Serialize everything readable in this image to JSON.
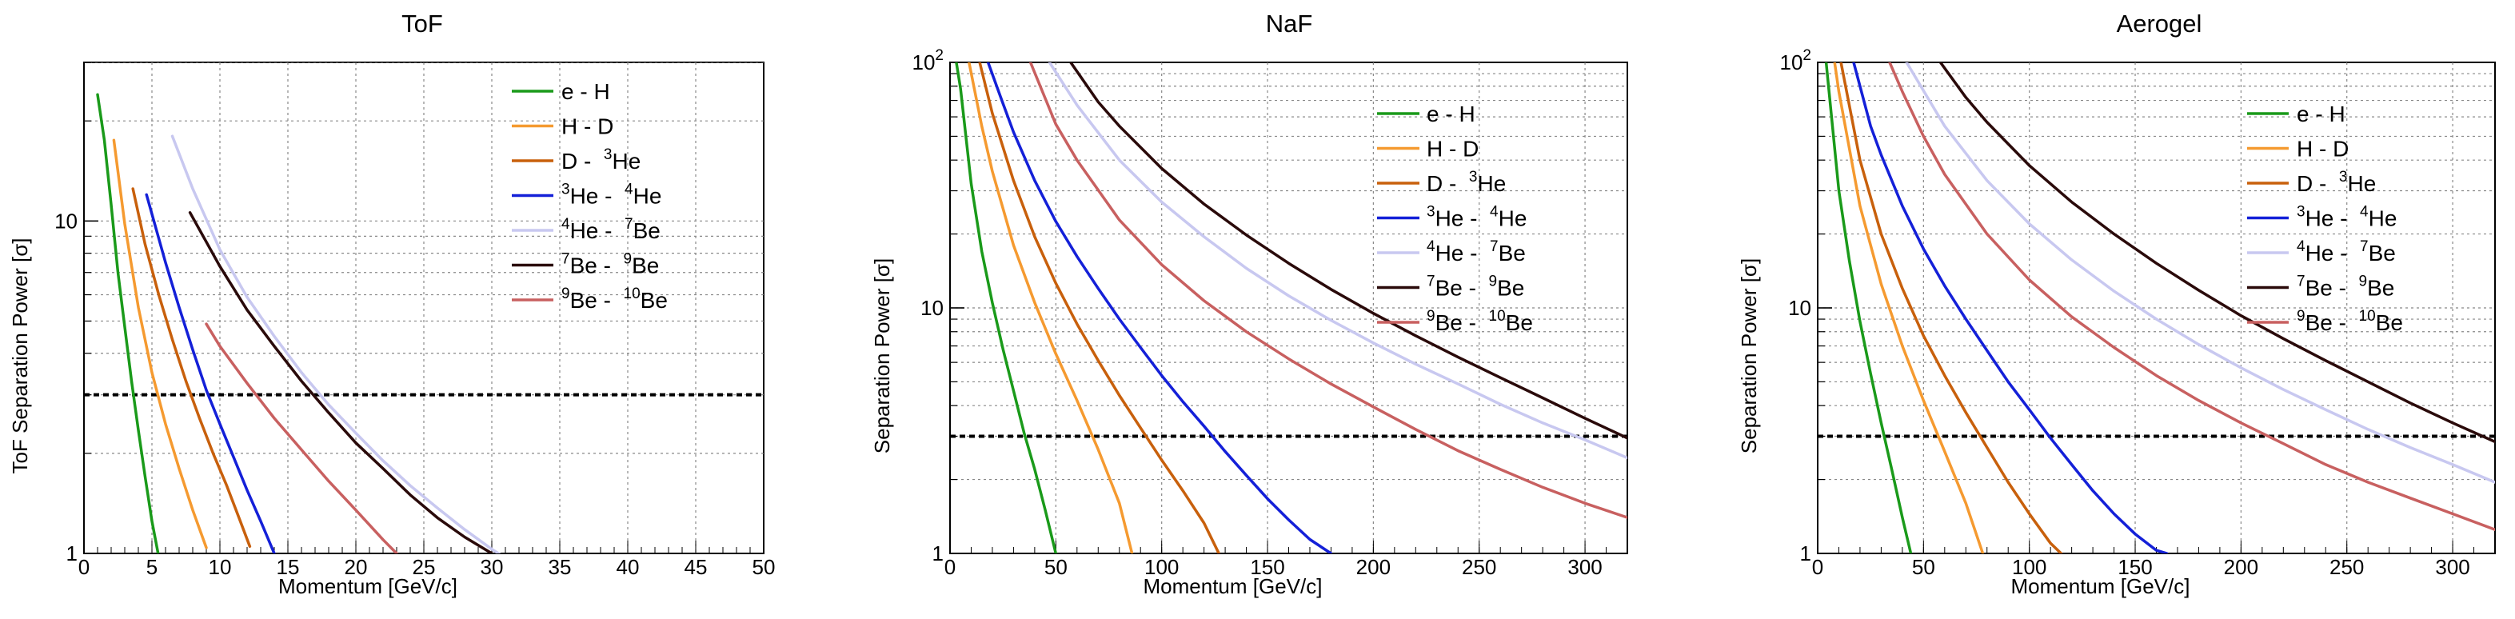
{
  "chart_data": [
    {
      "type": "line",
      "title": "ToF",
      "xlabel": "Momentum [GeV/c]",
      "ylabel": "ToF Separation Power [σ]",
      "xlim": [
        0,
        50
      ],
      "ylim": [
        1,
        30
      ],
      "ylog": true,
      "xticks": [
        0,
        5,
        10,
        15,
        20,
        25,
        30,
        35,
        40,
        45,
        50
      ],
      "yticks": [
        1,
        10
      ],
      "threshold": 3,
      "grid": true,
      "legend_position": "top-right",
      "series": [
        {
          "name": "e - H",
          "color": "#1a9a1a",
          "x": [
            1.0,
            1.5,
            2,
            2.5,
            3,
            3.5,
            4,
            4.5,
            5,
            5.45
          ],
          "y": [
            24,
            17.5,
            11.2,
            7.0,
            4.8,
            3.3,
            2.35,
            1.7,
            1.25,
            1.0
          ]
        },
        {
          "name": "H - D",
          "color": "#f59a30",
          "x": [
            2.2,
            3,
            4,
            5,
            6,
            7,
            8,
            9
          ],
          "y": [
            17.5,
            9.8,
            5.5,
            3.5,
            2.45,
            1.8,
            1.35,
            1.04
          ]
        },
        {
          "name": "D - 3He",
          "color": "#c8600c",
          "x": [
            3.6,
            4.5,
            5.5,
            6.5,
            7.5,
            8.5,
            9.5,
            10.5,
            11.5,
            12.2
          ],
          "y": [
            12.5,
            8.5,
            6.0,
            4.4,
            3.3,
            2.55,
            2.0,
            1.6,
            1.25,
            1.05
          ]
        },
        {
          "name": "3He - 4He",
          "color": "#1420d8",
          "x": [
            4.6,
            6,
            7,
            8,
            9,
            10,
            11,
            12,
            13,
            14
          ],
          "y": [
            12.0,
            7.5,
            5.5,
            4.1,
            3.1,
            2.45,
            1.95,
            1.55,
            1.25,
            1.0
          ]
        },
        {
          "name": "4He - 7Be",
          "color": "#c8c8f0",
          "x": [
            6.5,
            8,
            10,
            12,
            14,
            16,
            18,
            20,
            22,
            24,
            26,
            28,
            30,
            31
          ],
          "y": [
            18.0,
            12.5,
            8.2,
            5.9,
            4.5,
            3.5,
            2.8,
            2.3,
            1.9,
            1.6,
            1.37,
            1.18,
            1.03,
            0.97
          ]
        },
        {
          "name": "7Be - 9Be",
          "color": "#2a0a0a",
          "x": [
            7.8,
            10,
            12,
            14,
            16,
            18,
            20,
            22,
            24,
            26,
            28,
            30
          ],
          "y": [
            10.6,
            7.3,
            5.4,
            4.2,
            3.3,
            2.65,
            2.15,
            1.8,
            1.5,
            1.28,
            1.12,
            1.0
          ]
        },
        {
          "name": "9Be - 10Be",
          "color": "#c86060",
          "x": [
            9.0,
            10,
            12,
            14,
            16,
            18,
            20,
            22,
            23
          ],
          "y": [
            4.9,
            4.2,
            3.25,
            2.55,
            2.05,
            1.65,
            1.35,
            1.1,
            1.0
          ]
        }
      ]
    },
    {
      "type": "line",
      "title": "NaF",
      "xlabel": "Momentum [GeV/c]",
      "ylabel": "Separation Power [σ]",
      "xlim": [
        0,
        320
      ],
      "ylim": [
        1,
        100
      ],
      "ylog": true,
      "xticks": [
        0,
        50,
        100,
        150,
        200,
        250,
        300
      ],
      "yticks": [
        1,
        10,
        100
      ],
      "threshold": 3,
      "grid": true,
      "legend_position": "top-right",
      "series": [
        {
          "name": "e - H",
          "color": "#1a9a1a",
          "x": [
            3,
            5,
            10,
            15,
            20,
            25,
            30,
            35,
            40,
            45,
            50
          ],
          "y": [
            100,
            78,
            32,
            17,
            10.5,
            6.8,
            4.6,
            3.1,
            2.2,
            1.5,
            1.0
          ]
        },
        {
          "name": "H - D",
          "color": "#f59a30",
          "x": [
            9,
            15,
            20,
            30,
            40,
            50,
            60,
            70,
            80,
            86
          ],
          "y": [
            100,
            55,
            36,
            18,
            10.5,
            6.5,
            4.2,
            2.65,
            1.6,
            1.0
          ]
        },
        {
          "name": "D - 3He",
          "color": "#c8600c",
          "x": [
            14,
            20,
            30,
            40,
            50,
            60,
            70,
            80,
            90,
            100,
            110,
            120,
            127
          ],
          "y": [
            100,
            62,
            33,
            19.5,
            12.6,
            8.6,
            6.1,
            4.4,
            3.25,
            2.4,
            1.8,
            1.33,
            1.0
          ]
        },
        {
          "name": "3He - 4He",
          "color": "#1420d8",
          "x": [
            18,
            25,
            30,
            40,
            50,
            60,
            70,
            80,
            90,
            100,
            110,
            120,
            130,
            140,
            150,
            160,
            170,
            180
          ],
          "y": [
            100,
            68,
            52,
            33,
            22.5,
            16.2,
            12.0,
            9.0,
            6.9,
            5.3,
            4.15,
            3.3,
            2.6,
            2.08,
            1.67,
            1.37,
            1.14,
            1.0
          ]
        },
        {
          "name": "4He - 7Be",
          "color": "#c8c8f0",
          "x": [
            47,
            60,
            80,
            100,
            120,
            140,
            160,
            180,
            200,
            220,
            240,
            260,
            280,
            300,
            320
          ],
          "y": [
            100,
            67,
            40,
            27,
            19.5,
            14.5,
            11.2,
            8.9,
            7.2,
            5.9,
            4.9,
            4.05,
            3.4,
            2.9,
            2.45
          ]
        },
        {
          "name": "7Be - 9Be",
          "color": "#2a0a0a",
          "x": [
            57,
            70,
            80,
            100,
            120,
            140,
            160,
            180,
            200,
            220,
            240,
            260,
            280,
            300,
            320
          ],
          "y": [
            100,
            69,
            55,
            37,
            26.5,
            19.8,
            15.2,
            11.9,
            9.5,
            7.7,
            6.3,
            5.2,
            4.3,
            3.55,
            2.95
          ]
        },
        {
          "name": "9Be - 10Be",
          "color": "#c86060",
          "x": [
            38,
            50,
            60,
            80,
            100,
            120,
            140,
            160,
            180,
            200,
            220,
            240,
            260,
            280,
            300,
            320
          ],
          "y": [
            100,
            56,
            40,
            22.8,
            15.0,
            10.7,
            8.0,
            6.2,
            4.9,
            3.95,
            3.2,
            2.62,
            2.2,
            1.86,
            1.6,
            1.4
          ]
        }
      ]
    },
    {
      "type": "line",
      "title": "Aerogel",
      "xlabel": "Momentum [GeV/c]",
      "ylabel": "Separation Power [σ]",
      "xlim": [
        0,
        320
      ],
      "ylim": [
        1,
        100
      ],
      "ylog": true,
      "xticks": [
        0,
        50,
        100,
        150,
        200,
        250,
        300
      ],
      "yticks": [
        1,
        10,
        100
      ],
      "threshold": 3,
      "grid": true,
      "legend_position": "top-right",
      "series": [
        {
          "name": "e - H",
          "color": "#1a9a1a",
          "x": [
            4,
            10,
            15,
            20,
            25,
            30,
            35,
            40,
            44
          ],
          "y": [
            100,
            30,
            15.5,
            8.8,
            5.4,
            3.4,
            2.2,
            1.4,
            1.0
          ]
        },
        {
          "name": "H - D",
          "color": "#f59a30",
          "x": [
            8,
            10,
            20,
            30,
            40,
            50,
            60,
            70,
            78
          ],
          "y": [
            100,
            76,
            26,
            12.5,
            7.0,
            4.2,
            2.6,
            1.6,
            1.0
          ]
        },
        {
          "name": "D - 3He",
          "color": "#c8600c",
          "x": [
            11,
            20,
            30,
            40,
            50,
            60,
            70,
            80,
            90,
            100,
            110,
            115
          ],
          "y": [
            100,
            40,
            20,
            12,
            7.7,
            5.3,
            3.75,
            2.7,
            1.95,
            1.45,
            1.1,
            1.0
          ]
        },
        {
          "name": "3He - 4He",
          "color": "#1420d8",
          "x": [
            17,
            25,
            30,
            40,
            50,
            60,
            70,
            80,
            90,
            100,
            110,
            120,
            130,
            140,
            150,
            160,
            165
          ],
          "y": [
            100,
            55,
            42,
            26,
            17.4,
            12.3,
            9.0,
            6.7,
            5.0,
            3.85,
            2.95,
            2.3,
            1.8,
            1.45,
            1.2,
            1.03,
            1.0
          ]
        },
        {
          "name": "4He - 7Be",
          "color": "#c8c8f0",
          "x": [
            42,
            60,
            80,
            100,
            120,
            140,
            160,
            180,
            200,
            220,
            240,
            260,
            280,
            300,
            320
          ],
          "y": [
            100,
            55,
            33,
            22,
            15.7,
            11.7,
            9.0,
            7.1,
            5.7,
            4.65,
            3.85,
            3.2,
            2.7,
            2.3,
            1.95
          ]
        },
        {
          "name": "7Be - 9Be",
          "color": "#2a0a0a",
          "x": [
            58,
            70,
            80,
            100,
            120,
            140,
            160,
            180,
            200,
            220,
            240,
            260,
            280,
            300,
            320
          ],
          "y": [
            100,
            72,
            57,
            38,
            27,
            20,
            15.2,
            11.8,
            9.3,
            7.5,
            6.1,
            5.0,
            4.1,
            3.4,
            2.85
          ]
        },
        {
          "name": "9Be - 10Be",
          "color": "#c86060",
          "x": [
            34,
            40,
            50,
            60,
            80,
            100,
            120,
            140,
            160,
            180,
            200,
            220,
            240,
            260,
            280,
            300,
            320
          ],
          "y": [
            100,
            76,
            50,
            35,
            20,
            13,
            9.2,
            6.9,
            5.3,
            4.2,
            3.4,
            2.8,
            2.3,
            1.95,
            1.68,
            1.45,
            1.25
          ]
        }
      ]
    }
  ]
}
